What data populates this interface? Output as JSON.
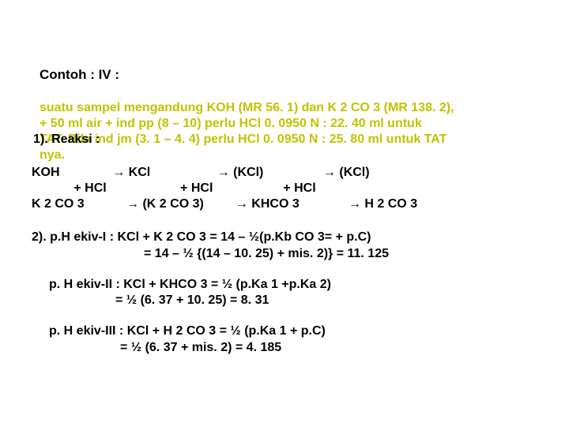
{
  "title": "Contoh : IV :",
  "sample": {
    "line1": "suatu sampel mengandung KOH (MR 56. 1) dan K 2 CO 3 (MR 138. 2),",
    "line2": "+ 50 ml air + ind pp (8 – 10) perlu HCl 0. 0950 N  : 22. 40 ml untuk",
    "line3a": "TAT. Bila ind jm (3. 1 – 4. 4) perlu HCl 0. 0950 N : 25. 80 ml untuk TAT",
    "line4": "nya.",
    "reaksi_label": "1). Reaksi :"
  },
  "rx": {
    "row1": "KOH               → KCl                   → (KCl)                 → (KCl)",
    "row2": "            + HCl                     + HCl                    + HCl",
    "row3": "K 2 CO 3            → (K 2 CO 3)         → KHCO 3              → H 2 CO 3"
  },
  "sec2": {
    "l1": "2). p.H ekiv-I : KCl + K 2 CO 3 = 14 – ½(p.Kb CO 3= + p.C)",
    "l2": "= 14 – ½ {(14 – 10. 25) + mis. 2)} = 11. 125"
  },
  "sec3": {
    "l1": "p. H ekiv-II : KCl + KHCO 3 = ½ (p.Ka 1 +p.Ka 2)",
    "l2": "= ½ (6. 37 + 10. 25) = 8. 31"
  },
  "sec4": {
    "l1": "p. H ekiv-III : KCl + H 2 CO 3 = ½ (p.Ka 1 + p.C)",
    "l2": "= ½ (6. 37 + mis. 2) = 4. 185"
  }
}
